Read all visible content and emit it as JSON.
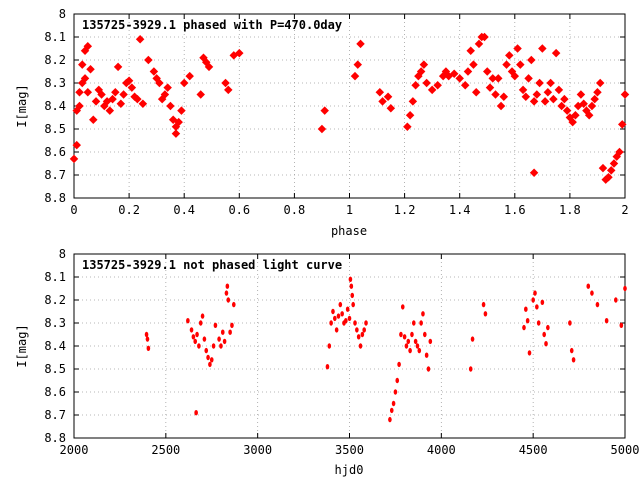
{
  "chart_data": [
    {
      "type": "scatter",
      "title": "135725-3929.1 phased with P=470.0day",
      "xlabel": "phase",
      "ylabel": "I[mag]",
      "xlim": [
        0,
        2
      ],
      "ylim": [
        8,
        8.8
      ],
      "y_inverted": true,
      "grid": true,
      "xticks": [
        "0",
        "0.2",
        "0.4",
        "0.6",
        "0.8",
        "1",
        "1.2",
        "1.4",
        "1.6",
        "1.8",
        "2"
      ],
      "yticks": [
        "8",
        "8.1",
        "8.2",
        "8.3",
        "8.4",
        "8.5",
        "8.6",
        "8.7",
        "8.8"
      ],
      "marker_color": "#ff0000",
      "series": [
        {
          "points": [
            [
              0.0,
              8.63
            ],
            [
              0.01,
              8.57
            ],
            [
              0.01,
              8.42
            ],
            [
              0.02,
              8.34
            ],
            [
              0.02,
              8.4
            ],
            [
              0.03,
              8.22
            ],
            [
              0.03,
              8.3
            ],
            [
              0.04,
              8.28
            ],
            [
              0.04,
              8.16
            ],
            [
              0.05,
              8.14
            ],
            [
              0.05,
              8.34
            ],
            [
              0.06,
              8.24
            ],
            [
              0.07,
              8.46
            ],
            [
              0.08,
              8.38
            ],
            [
              0.09,
              8.33
            ],
            [
              0.1,
              8.35
            ],
            [
              0.11,
              8.4
            ],
            [
              0.12,
              8.38
            ],
            [
              0.13,
              8.42
            ],
            [
              0.14,
              8.37
            ],
            [
              0.15,
              8.34
            ],
            [
              0.16,
              8.23
            ],
            [
              0.17,
              8.39
            ],
            [
              0.18,
              8.35
            ],
            [
              0.19,
              8.3
            ],
            [
              0.2,
              8.29
            ],
            [
              0.21,
              8.32
            ],
            [
              0.22,
              8.36
            ],
            [
              0.23,
              8.37
            ],
            [
              0.24,
              8.11
            ],
            [
              0.25,
              8.39
            ],
            [
              0.27,
              8.2
            ],
            [
              0.29,
              8.25
            ],
            [
              0.3,
              8.28
            ],
            [
              0.31,
              8.3
            ],
            [
              0.32,
              8.37
            ],
            [
              0.33,
              8.35
            ],
            [
              0.34,
              8.32
            ],
            [
              0.35,
              8.4
            ],
            [
              0.36,
              8.46
            ],
            [
              0.37,
              8.49
            ],
            [
              0.37,
              8.52
            ],
            [
              0.38,
              8.47
            ],
            [
              0.39,
              8.42
            ],
            [
              0.4,
              8.3
            ],
            [
              0.42,
              8.27
            ],
            [
              0.46,
              8.35
            ],
            [
              0.47,
              8.19
            ],
            [
              0.48,
              8.21
            ],
            [
              0.49,
              8.23
            ],
            [
              0.55,
              8.3
            ],
            [
              0.56,
              8.33
            ],
            [
              0.58,
              8.18
            ],
            [
              0.6,
              8.17
            ],
            [
              0.9,
              8.5
            ],
            [
              0.91,
              8.42
            ],
            [
              1.02,
              8.27
            ],
            [
              1.03,
              8.22
            ],
            [
              1.04,
              8.13
            ],
            [
              1.11,
              8.34
            ],
            [
              1.12,
              8.38
            ],
            [
              1.14,
              8.36
            ],
            [
              1.15,
              8.41
            ],
            [
              1.21,
              8.49
            ],
            [
              1.22,
              8.44
            ],
            [
              1.23,
              8.38
            ],
            [
              1.24,
              8.31
            ],
            [
              1.25,
              8.27
            ],
            [
              1.26,
              8.25
            ],
            [
              1.27,
              8.22
            ],
            [
              1.28,
              8.3
            ],
            [
              1.3,
              8.33
            ],
            [
              1.32,
              8.31
            ],
            [
              1.34,
              8.27
            ],
            [
              1.35,
              8.25
            ],
            [
              1.36,
              8.27
            ],
            [
              1.38,
              8.26
            ],
            [
              1.4,
              8.28
            ],
            [
              1.42,
              8.31
            ],
            [
              1.43,
              8.25
            ],
            [
              1.44,
              8.16
            ],
            [
              1.45,
              8.22
            ],
            [
              1.46,
              8.34
            ],
            [
              1.47,
              8.13
            ],
            [
              1.48,
              8.1
            ],
            [
              1.49,
              8.1
            ],
            [
              1.5,
              8.25
            ],
            [
              1.51,
              8.32
            ],
            [
              1.52,
              8.28
            ],
            [
              1.53,
              8.35
            ],
            [
              1.54,
              8.28
            ],
            [
              1.55,
              8.4
            ],
            [
              1.56,
              8.36
            ],
            [
              1.57,
              8.22
            ],
            [
              1.58,
              8.18
            ],
            [
              1.59,
              8.25
            ],
            [
              1.6,
              8.27
            ],
            [
              1.61,
              8.15
            ],
            [
              1.62,
              8.22
            ],
            [
              1.63,
              8.33
            ],
            [
              1.64,
              8.36
            ],
            [
              1.65,
              8.28
            ],
            [
              1.66,
              8.2
            ],
            [
              1.67,
              8.38
            ],
            [
              1.68,
              8.35
            ],
            [
              1.69,
              8.3
            ],
            [
              1.7,
              8.15
            ],
            [
              1.71,
              8.38
            ],
            [
              1.72,
              8.34
            ],
            [
              1.73,
              8.3
            ],
            [
              1.74,
              8.37
            ],
            [
              1.75,
              8.17
            ],
            [
              1.76,
              8.33
            ],
            [
              1.77,
              8.4
            ],
            [
              1.78,
              8.37
            ],
            [
              1.79,
              8.42
            ],
            [
              1.8,
              8.45
            ],
            [
              1.81,
              8.47
            ],
            [
              1.82,
              8.44
            ],
            [
              1.83,
              8.4
            ],
            [
              1.84,
              8.35
            ],
            [
              1.85,
              8.39
            ],
            [
              1.86,
              8.42
            ],
            [
              1.87,
              8.44
            ],
            [
              1.88,
              8.4
            ],
            [
              1.89,
              8.37
            ],
            [
              1.9,
              8.34
            ],
            [
              1.91,
              8.3
            ],
            [
              1.67,
              8.69
            ],
            [
              1.92,
              8.67
            ],
            [
              1.93,
              8.72
            ],
            [
              1.94,
              8.71
            ],
            [
              1.95,
              8.68
            ],
            [
              1.96,
              8.65
            ],
            [
              1.97,
              8.62
            ],
            [
              1.98,
              8.6
            ],
            [
              1.99,
              8.48
            ],
            [
              2.0,
              8.35
            ]
          ]
        }
      ]
    },
    {
      "type": "scatter",
      "title": "135725-3929.1 not phased light curve",
      "xlabel": "hjd0",
      "ylabel": "I[mag]",
      "xlim": [
        2000,
        5000
      ],
      "ylim": [
        8,
        8.8
      ],
      "y_inverted": true,
      "grid": true,
      "xticks": [
        "2000",
        "2500",
        "3000",
        "3500",
        "4000",
        "4500",
        "5000"
      ],
      "yticks": [
        "8",
        "8.1",
        "8.2",
        "8.3",
        "8.4",
        "8.5",
        "8.6",
        "8.7",
        "8.8"
      ],
      "marker_color": "#ff0000",
      "series": [
        {
          "points": [
            [
              2395,
              8.35
            ],
            [
              2400,
              8.37
            ],
            [
              2405,
              8.41
            ],
            [
              2620,
              8.29
            ],
            [
              2640,
              8.33
            ],
            [
              2650,
              8.36
            ],
            [
              2660,
              8.38
            ],
            [
              2665,
              8.69
            ],
            [
              2670,
              8.35
            ],
            [
              2680,
              8.4
            ],
            [
              2690,
              8.3
            ],
            [
              2700,
              8.27
            ],
            [
              2710,
              8.37
            ],
            [
              2720,
              8.42
            ],
            [
              2730,
              8.45
            ],
            [
              2740,
              8.48
            ],
            [
              2750,
              8.46
            ],
            [
              2760,
              8.4
            ],
            [
              2770,
              8.31
            ],
            [
              2790,
              8.37
            ],
            [
              2800,
              8.4
            ],
            [
              2810,
              8.34
            ],
            [
              2820,
              8.38
            ],
            [
              2830,
              8.17
            ],
            [
              2835,
              8.14
            ],
            [
              2840,
              8.2
            ],
            [
              2850,
              8.34
            ],
            [
              2860,
              8.31
            ],
            [
              2870,
              8.22
            ],
            [
              3380,
              8.49
            ],
            [
              3390,
              8.4
            ],
            [
              3400,
              8.3
            ],
            [
              3410,
              8.25
            ],
            [
              3420,
              8.28
            ],
            [
              3430,
              8.33
            ],
            [
              3440,
              8.27
            ],
            [
              3450,
              8.22
            ],
            [
              3460,
              8.26
            ],
            [
              3470,
              8.3
            ],
            [
              3480,
              8.29
            ],
            [
              3490,
              8.24
            ],
            [
              3500,
              8.28
            ],
            [
              3505,
              8.11
            ],
            [
              3510,
              8.14
            ],
            [
              3515,
              8.18
            ],
            [
              3520,
              8.22
            ],
            [
              3530,
              8.3
            ],
            [
              3540,
              8.33
            ],
            [
              3550,
              8.36
            ],
            [
              3560,
              8.4
            ],
            [
              3570,
              8.35
            ],
            [
              3580,
              8.33
            ],
            [
              3590,
              8.3
            ],
            [
              3720,
              8.72
            ],
            [
              3730,
              8.68
            ],
            [
              3740,
              8.65
            ],
            [
              3750,
              8.6
            ],
            [
              3760,
              8.55
            ],
            [
              3770,
              8.48
            ],
            [
              3780,
              8.35
            ],
            [
              3790,
              8.23
            ],
            [
              3800,
              8.36
            ],
            [
              3810,
              8.4
            ],
            [
              3820,
              8.38
            ],
            [
              3830,
              8.42
            ],
            [
              3840,
              8.35
            ],
            [
              3850,
              8.3
            ],
            [
              3860,
              8.38
            ],
            [
              3870,
              8.4
            ],
            [
              3880,
              8.42
            ],
            [
              3890,
              8.3
            ],
            [
              3900,
              8.26
            ],
            [
              3910,
              8.35
            ],
            [
              3920,
              8.44
            ],
            [
              3930,
              8.5
            ],
            [
              3940,
              8.38
            ],
            [
              4160,
              8.5
            ],
            [
              4170,
              8.37
            ],
            [
              4230,
              8.22
            ],
            [
              4240,
              8.26
            ],
            [
              4450,
              8.32
            ],
            [
              4460,
              8.24
            ],
            [
              4470,
              8.29
            ],
            [
              4480,
              8.43
            ],
            [
              4500,
              8.2
            ],
            [
              4510,
              8.17
            ],
            [
              4520,
              8.23
            ],
            [
              4530,
              8.3
            ],
            [
              4550,
              8.21
            ],
            [
              4560,
              8.35
            ],
            [
              4570,
              8.39
            ],
            [
              4580,
              8.32
            ],
            [
              4700,
              8.3
            ],
            [
              4710,
              8.42
            ],
            [
              4720,
              8.46
            ],
            [
              4800,
              8.14
            ],
            [
              4820,
              8.17
            ],
            [
              4850,
              8.22
            ],
            [
              4900,
              8.29
            ],
            [
              4950,
              8.2
            ],
            [
              4980,
              8.31
            ],
            [
              5000,
              8.15
            ]
          ]
        }
      ]
    }
  ]
}
